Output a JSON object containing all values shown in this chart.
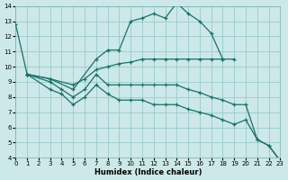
{
  "xlabel": "Humidex (Indice chaleur)",
  "xlim": [
    0,
    23
  ],
  "ylim": [
    4,
    14
  ],
  "xticks": [
    0,
    1,
    2,
    3,
    4,
    5,
    6,
    7,
    8,
    9,
    10,
    11,
    12,
    13,
    14,
    15,
    16,
    17,
    18,
    19,
    20,
    21,
    22,
    23
  ],
  "yticks": [
    4,
    5,
    6,
    7,
    8,
    9,
    10,
    11,
    12,
    13,
    14
  ],
  "bg_color": "#cce8e8",
  "line_color": "#1a7068",
  "grid_color": "#99cccc",
  "lines": [
    {
      "x": [
        0,
        1,
        3,
        5,
        7,
        8,
        9,
        10,
        11,
        12,
        13,
        14,
        15,
        16,
        17,
        18
      ],
      "y": [
        12.8,
        9.5,
        9.2,
        8.5,
        10.5,
        11.1,
        11.1,
        13.0,
        13.2,
        13.5,
        13.2,
        14.2,
        13.5,
        13.0,
        12.2,
        10.5
      ]
    },
    {
      "x": [
        1,
        3,
        5,
        6,
        7,
        8,
        9,
        10,
        11,
        12,
        13,
        14,
        15,
        16,
        17,
        18,
        19
      ],
      "y": [
        9.5,
        9.2,
        8.8,
        9.2,
        9.8,
        10.0,
        10.2,
        10.3,
        10.5,
        10.5,
        10.5,
        10.5,
        10.5,
        10.5,
        10.5,
        10.5,
        10.5
      ]
    },
    {
      "x": [
        1,
        3,
        4,
        5,
        6,
        7,
        8,
        9,
        10,
        11,
        12,
        13,
        14,
        15,
        16,
        17,
        18,
        19,
        20,
        21,
        22,
        23
      ],
      "y": [
        9.5,
        9.0,
        8.5,
        8.0,
        8.5,
        9.5,
        8.8,
        8.8,
        8.8,
        8.8,
        8.8,
        8.8,
        8.8,
        8.5,
        8.3,
        8.0,
        7.8,
        7.5,
        7.5,
        5.2,
        4.8,
        3.8
      ]
    },
    {
      "x": [
        1,
        3,
        4,
        5,
        6,
        7,
        8,
        9,
        10,
        11,
        12,
        13,
        14,
        15,
        16,
        17,
        18,
        19,
        20,
        21,
        22,
        23
      ],
      "y": [
        9.5,
        8.5,
        8.2,
        7.5,
        8.0,
        8.8,
        8.2,
        7.8,
        7.8,
        7.8,
        7.5,
        7.5,
        7.5,
        7.2,
        7.0,
        6.8,
        6.5,
        6.2,
        6.5,
        5.2,
        4.8,
        3.8
      ]
    }
  ]
}
